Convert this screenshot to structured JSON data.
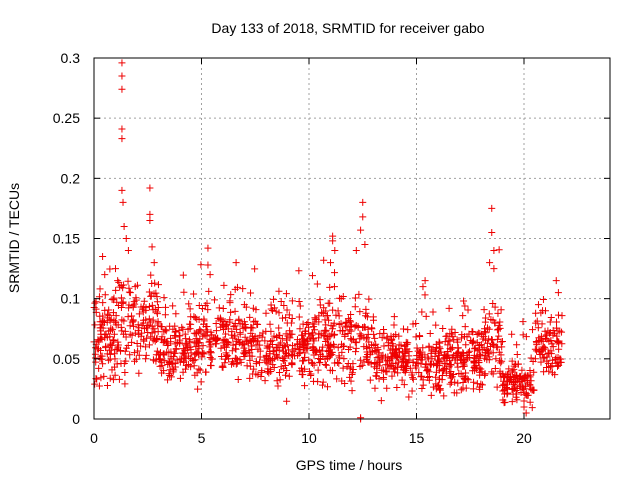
{
  "chart_data": {
    "type": "scatter",
    "title": "Day 133 of 2018, SRMTID for receiver gabo",
    "xlabel": "GPS time / hours",
    "ylabel": "SRMTID / TECUs",
    "xlim": [
      0,
      24
    ],
    "ylim": [
      0,
      0.3
    ],
    "x_ticks": [
      0,
      5,
      10,
      15,
      20
    ],
    "x_tick_labels": [
      "0",
      "5",
      "10",
      "15",
      "20"
    ],
    "y_ticks": [
      0,
      0.05,
      0.1,
      0.15,
      0.2,
      0.25,
      0.3
    ],
    "y_tick_labels": [
      "0",
      "0.05",
      "0.1",
      "0.15",
      "0.2",
      "0.25",
      "0.3"
    ],
    "grid": true,
    "marker": "plus",
    "series": [
      {
        "name": "SRMTID",
        "color": "#ee0000",
        "x_range": [
          0.0,
          21.8
        ],
        "points": [
          [
            1.3,
            0.296
          ],
          [
            1.3,
            0.285
          ],
          [
            1.3,
            0.274
          ],
          [
            1.3,
            0.241
          ],
          [
            1.3,
            0.233
          ],
          [
            1.3,
            0.19
          ],
          [
            1.35,
            0.18
          ],
          [
            1.4,
            0.16
          ],
          [
            1.5,
            0.15
          ],
          [
            1.6,
            0.14
          ],
          [
            2.6,
            0.192
          ],
          [
            2.6,
            0.17
          ],
          [
            2.6,
            0.165
          ],
          [
            2.7,
            0.143
          ],
          [
            2.8,
            0.13
          ],
          [
            0.4,
            0.135
          ],
          [
            0.5,
            0.12
          ],
          [
            1.0,
            0.125
          ],
          [
            1.1,
            0.115
          ],
          [
            5.3,
            0.142
          ],
          [
            5.3,
            0.128
          ],
          [
            5.4,
            0.12
          ],
          [
            11.1,
            0.152
          ],
          [
            11.1,
            0.148
          ],
          [
            11.2,
            0.14
          ],
          [
            11.0,
            0.13
          ],
          [
            12.5,
            0.18
          ],
          [
            12.5,
            0.168
          ],
          [
            12.4,
            0.157
          ],
          [
            12.6,
            0.145
          ],
          [
            12.2,
            0.14
          ],
          [
            18.5,
            0.175
          ],
          [
            18.5,
            0.155
          ],
          [
            18.6,
            0.14
          ],
          [
            18.4,
            0.13
          ],
          [
            18.6,
            0.125
          ],
          [
            15.4,
            0.115
          ],
          [
            15.3,
            0.11
          ],
          [
            21.5,
            0.115
          ],
          [
            21.6,
            0.105
          ],
          [
            21.0,
            0.09
          ],
          [
            12.4,
            0.001
          ],
          [
            12.4,
            0.0
          ],
          [
            20.1,
            0.005
          ],
          [
            20.0,
            0.01
          ]
        ],
        "generated_fill": {
          "count": 1700,
          "seed": 133,
          "profile": [
            {
              "x0": 0.0,
              "x1": 1.2,
              "base": 0.065,
              "spread": 0.032
            },
            {
              "x0": 1.2,
              "x1": 3.0,
              "base": 0.078,
              "spread": 0.036
            },
            {
              "x0": 3.0,
              "x1": 5.0,
              "base": 0.058,
              "spread": 0.024
            },
            {
              "x0": 5.0,
              "x1": 7.0,
              "base": 0.068,
              "spread": 0.026
            },
            {
              "x0": 7.0,
              "x1": 10.5,
              "base": 0.06,
              "spread": 0.026
            },
            {
              "x0": 10.5,
              "x1": 12.8,
              "base": 0.065,
              "spread": 0.03
            },
            {
              "x0": 12.8,
              "x1": 15.0,
              "base": 0.052,
              "spread": 0.022
            },
            {
              "x0": 15.0,
              "x1": 18.0,
              "base": 0.048,
              "spread": 0.024
            },
            {
              "x0": 18.0,
              "x1": 19.0,
              "base": 0.058,
              "spread": 0.028
            },
            {
              "x0": 19.0,
              "x1": 20.5,
              "base": 0.03,
              "spread": 0.016
            },
            {
              "x0": 20.5,
              "x1": 21.8,
              "base": 0.06,
              "spread": 0.024
            }
          ]
        }
      }
    ]
  }
}
